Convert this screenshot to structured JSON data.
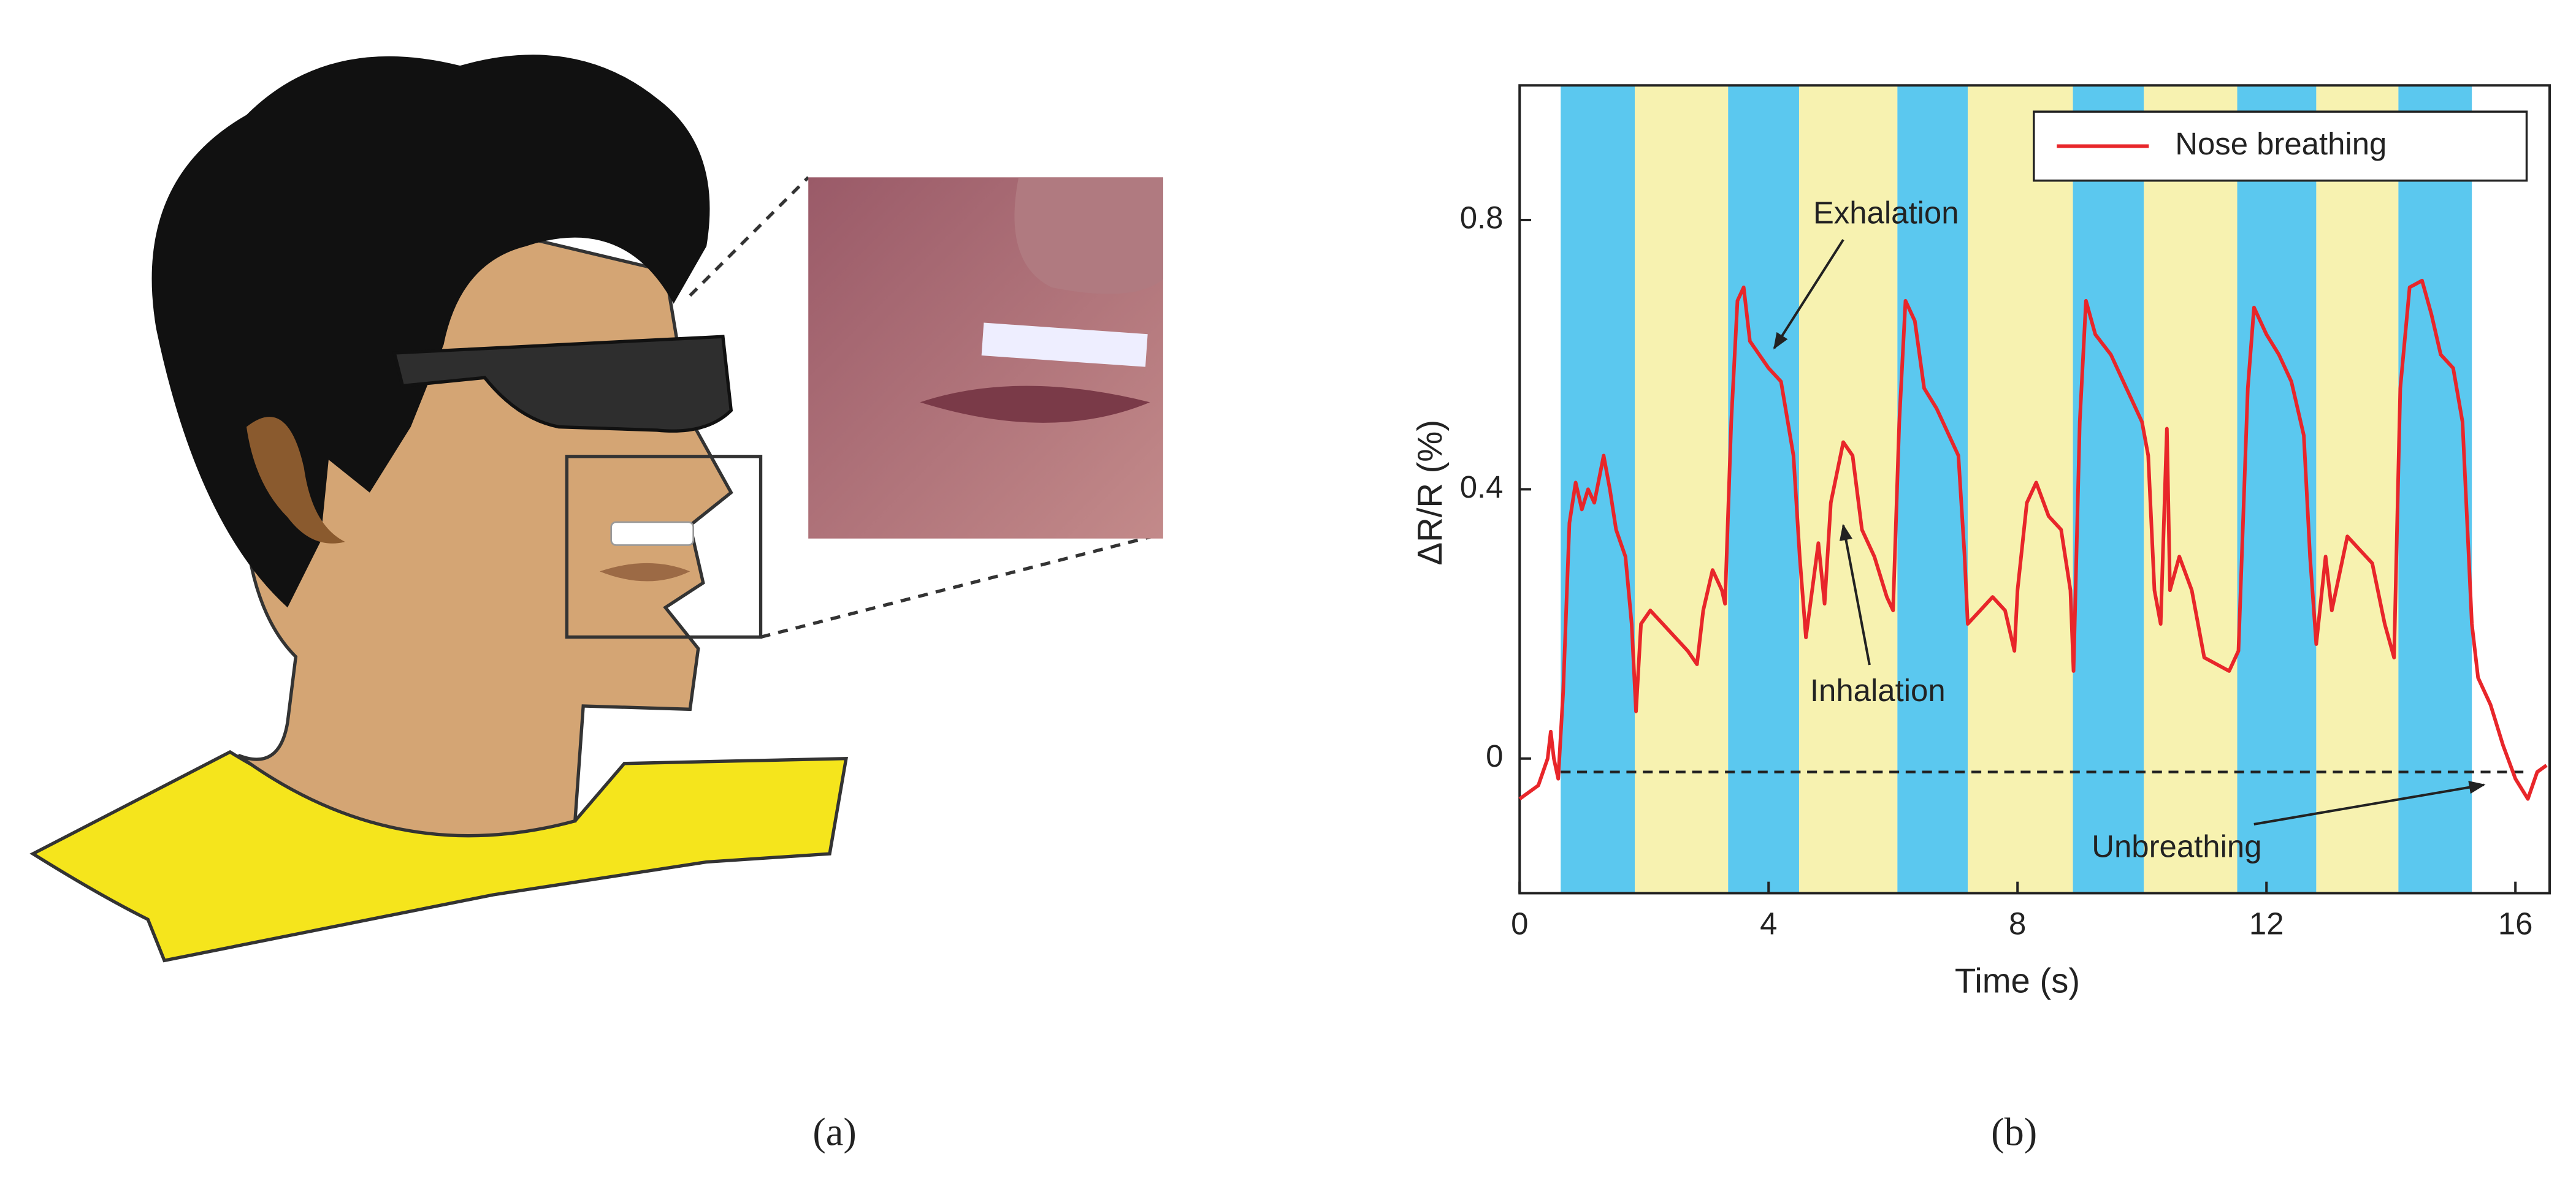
{
  "panel_labels": [
    "(a)",
    "(b)"
  ],
  "chart_data": {
    "type": "line",
    "xlabel": "Time (s)",
    "ylabel": "ΔR/R (%)",
    "xlim": [
      0,
      16.55
    ],
    "ylim": [
      -0.2,
      1.0
    ],
    "xticks": [
      0,
      4,
      8,
      12,
      16
    ],
    "yticks": [
      0,
      0.4,
      0.8
    ],
    "legend": "upper right",
    "bands": [
      {
        "x": [
          0.66,
          1.85
        ],
        "color": "#5bc8ef"
      },
      {
        "x": [
          1.85,
          3.35
        ],
        "color": "#f7f2b0"
      },
      {
        "x": [
          3.35,
          4.49
        ],
        "color": "#5bc8ef"
      },
      {
        "x": [
          4.49,
          6.07
        ],
        "color": "#f7f2b0"
      },
      {
        "x": [
          6.07,
          7.2
        ],
        "color": "#5bc8ef"
      },
      {
        "x": [
          7.2,
          8.89
        ],
        "color": "#f7f2b0"
      },
      {
        "x": [
          8.89,
          10.03
        ],
        "color": "#5bc8ef"
      },
      {
        "x": [
          10.03,
          11.53
        ],
        "color": "#f7f2b0"
      },
      {
        "x": [
          11.53,
          12.8
        ],
        "color": "#5bc8ef"
      },
      {
        "x": [
          12.8,
          14.12
        ],
        "color": "#f7f2b0"
      },
      {
        "x": [
          14.12,
          15.3
        ],
        "color": "#5bc8ef"
      }
    ],
    "reference_line": -0.02,
    "annotations": [
      "Exhalation",
      "Inhalation",
      "Unbreathing"
    ],
    "x": [
      0,
      0.3,
      0.45,
      0.5,
      0.55,
      0.62,
      0.7,
      0.8,
      0.9,
      1.0,
      1.1,
      1.2,
      1.35,
      1.45,
      1.55,
      1.7,
      1.8,
      1.87,
      1.95,
      2.1,
      2.3,
      2.5,
      2.7,
      2.85,
      2.95,
      3.1,
      3.25,
      3.3,
      3.4,
      3.5,
      3.6,
      3.7,
      3.85,
      4.0,
      4.2,
      4.4,
      4.5,
      4.6,
      4.7,
      4.8,
      4.9,
      5.0,
      5.2,
      5.35,
      5.5,
      5.7,
      5.9,
      6.0,
      6.1,
      6.2,
      6.35,
      6.5,
      6.7,
      6.9,
      7.05,
      7.15,
      7.2,
      7.4,
      7.6,
      7.8,
      7.95,
      8.0,
      8.15,
      8.3,
      8.5,
      8.7,
      8.85,
      8.9,
      9.0,
      9.1,
      9.25,
      9.5,
      9.75,
      10.0,
      10.1,
      10.2,
      10.3,
      10.4,
      10.45,
      10.6,
      10.8,
      11.0,
      11.2,
      11.4,
      11.55,
      11.7,
      11.8,
      12.0,
      12.2,
      12.4,
      12.6,
      12.7,
      12.8,
      12.95,
      13.05,
      13.3,
      13.5,
      13.7,
      13.9,
      14.05,
      14.15,
      14.3,
      14.5,
      14.65,
      14.8,
      15.0,
      15.15,
      15.3,
      15.4,
      15.6,
      15.8,
      16.0,
      16.2,
      16.35,
      16.5
    ],
    "series": [
      {
        "name": "Nose breathing",
        "color": "#e8262a",
        "values": [
          -0.06,
          -0.04,
          0.0,
          0.04,
          0.0,
          -0.03,
          0.1,
          0.35,
          0.41,
          0.37,
          0.4,
          0.38,
          0.45,
          0.4,
          0.34,
          0.3,
          0.2,
          0.07,
          0.2,
          0.22,
          0.2,
          0.18,
          0.16,
          0.14,
          0.22,
          0.28,
          0.25,
          0.23,
          0.5,
          0.68,
          0.7,
          0.62,
          0.6,
          0.58,
          0.56,
          0.45,
          0.3,
          0.18,
          0.25,
          0.32,
          0.23,
          0.38,
          0.47,
          0.45,
          0.34,
          0.3,
          0.24,
          0.22,
          0.5,
          0.68,
          0.65,
          0.55,
          0.52,
          0.48,
          0.45,
          0.3,
          0.2,
          0.22,
          0.24,
          0.22,
          0.16,
          0.25,
          0.38,
          0.41,
          0.36,
          0.34,
          0.25,
          0.13,
          0.5,
          0.68,
          0.63,
          0.6,
          0.55,
          0.5,
          0.45,
          0.25,
          0.2,
          0.49,
          0.25,
          0.3,
          0.25,
          0.15,
          0.14,
          0.13,
          0.16,
          0.55,
          0.67,
          0.63,
          0.6,
          0.56,
          0.48,
          0.3,
          0.17,
          0.3,
          0.22,
          0.33,
          0.31,
          0.29,
          0.2,
          0.15,
          0.55,
          0.7,
          0.71,
          0.66,
          0.6,
          0.58,
          0.5,
          0.2,
          0.12,
          0.08,
          0.02,
          -0.03,
          -0.06,
          -0.02,
          -0.01
        ]
      }
    ]
  }
}
